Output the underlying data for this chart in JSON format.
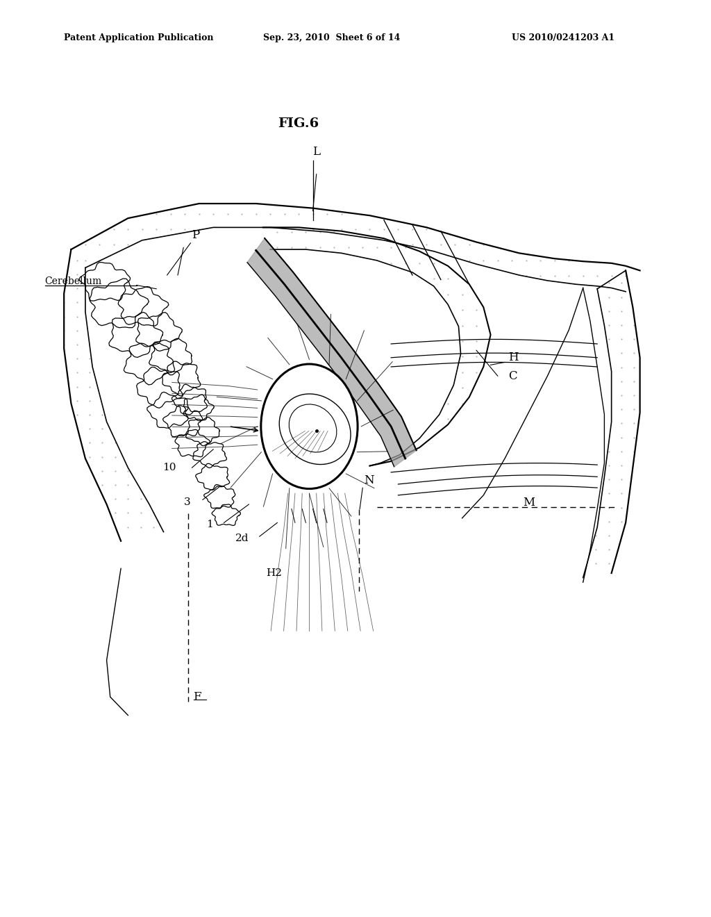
{
  "title": "FIG.6",
  "header_left": "Patent Application Publication",
  "header_center": "Sep. 23, 2010  Sheet 6 of 14",
  "header_right": "US 2010/0241203 A1",
  "background": "#ffffff",
  "dot_color": "#999999",
  "line_color": "#000000",
  "label_fontsize": 12,
  "header_fontsize": 9,
  "title_fontsize": 14
}
